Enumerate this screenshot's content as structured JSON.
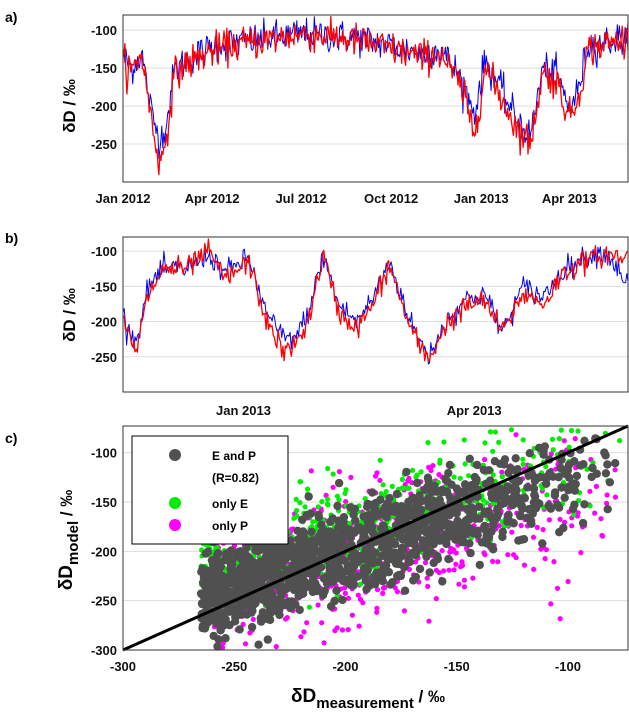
{
  "chart_data": [
    {
      "panel": "a)",
      "type": "line",
      "ylabel": "δD / ‰",
      "ylim": [
        -300,
        -80
      ],
      "yticks": [
        -100,
        -150,
        -200,
        -250
      ],
      "xlim": [
        "2012-01-01",
        "2013-05-31"
      ],
      "xticks": [
        {
          "date": "2012-01-01",
          "label": "Jan 2012"
        },
        {
          "date": "2012-04-01",
          "label": "Apr 2012"
        },
        {
          "date": "2012-07-01",
          "label": "Jul 2012"
        },
        {
          "date": "2012-10-01",
          "label": "Oct 2012"
        },
        {
          "date": "2013-01-01",
          "label": "Jan 2013"
        },
        {
          "date": "2013-04-01",
          "label": "Apr 2013"
        }
      ],
      "grid": "horizontal",
      "series": [
        {
          "color": "#0000ee",
          "points": [
            [
              "2012-01-01",
              -135
            ],
            [
              "2012-01-10",
              -150
            ],
            [
              "2012-01-20",
              -130
            ],
            [
              "2012-01-31",
              -215
            ],
            [
              "2012-02-08",
              -245
            ],
            [
              "2012-02-15",
              -220
            ],
            [
              "2012-02-22",
              -155
            ],
            [
              "2012-03-05",
              -140
            ],
            [
              "2012-03-20",
              -130
            ],
            [
              "2012-04-05",
              -120
            ],
            [
              "2012-05-01",
              -115
            ],
            [
              "2012-06-01",
              -110
            ],
            [
              "2012-07-01",
              -105
            ],
            [
              "2012-08-01",
              -108
            ],
            [
              "2012-09-01",
              -112
            ],
            [
              "2012-10-01",
              -120
            ],
            [
              "2012-11-01",
              -130
            ],
            [
              "2012-11-20",
              -125
            ],
            [
              "2012-12-10",
              -160
            ],
            [
              "2012-12-25",
              -210
            ],
            [
              "2013-01-05",
              -140
            ],
            [
              "2013-01-20",
              -175
            ],
            [
              "2013-02-05",
              -215
            ],
            [
              "2013-02-20",
              -240
            ],
            [
              "2013-03-05",
              -150
            ],
            [
              "2013-03-20",
              -160
            ],
            [
              "2013-04-01",
              -205
            ],
            [
              "2013-04-10",
              -180
            ],
            [
              "2013-04-20",
              -120
            ],
            [
              "2013-05-10",
              -115
            ],
            [
              "2013-05-31",
              -108
            ]
          ]
        },
        {
          "color": "#ff0000",
          "points": [
            [
              "2012-01-01",
              -140
            ],
            [
              "2012-01-10",
              -155
            ],
            [
              "2012-01-20",
              -130
            ],
            [
              "2012-01-31",
              -225
            ],
            [
              "2012-02-08",
              -280
            ],
            [
              "2012-02-15",
              -235
            ],
            [
              "2012-02-22",
              -160
            ],
            [
              "2012-03-05",
              -145
            ],
            [
              "2012-03-20",
              -135
            ],
            [
              "2012-04-05",
              -125
            ],
            [
              "2012-05-01",
              -118
            ],
            [
              "2012-06-01",
              -112
            ],
            [
              "2012-07-01",
              -105
            ],
            [
              "2012-08-01",
              -108
            ],
            [
              "2012-09-01",
              -115
            ],
            [
              "2012-10-01",
              -125
            ],
            [
              "2012-11-01",
              -135
            ],
            [
              "2012-11-20",
              -130
            ],
            [
              "2012-12-10",
              -170
            ],
            [
              "2012-12-25",
              -235
            ],
            [
              "2013-01-05",
              -150
            ],
            [
              "2013-01-20",
              -185
            ],
            [
              "2013-02-05",
              -225
            ],
            [
              "2013-02-20",
              -250
            ],
            [
              "2013-03-05",
              -155
            ],
            [
              "2013-03-20",
              -170
            ],
            [
              "2013-04-01",
              -215
            ],
            [
              "2013-04-10",
              -190
            ],
            [
              "2013-04-20",
              -125
            ],
            [
              "2013-05-10",
              -118
            ],
            [
              "2013-05-31",
              -110
            ]
          ]
        }
      ]
    },
    {
      "panel": "b)",
      "type": "line",
      "ylabel": "δD / ‰",
      "ylim": [
        -300,
        -80
      ],
      "yticks": [
        -100,
        -150,
        -200,
        -250
      ],
      "xlim": [
        "2012-11-15",
        "2013-05-31"
      ],
      "xticks": [
        {
          "date": "2013-01-01",
          "label": "Jan 2013"
        },
        {
          "date": "2013-04-01",
          "label": "Apr 2013"
        }
      ],
      "grid": "horizontal",
      "series": [
        {
          "color": "#0000ee",
          "points": [
            [
              "2012-11-15",
              -190
            ],
            [
              "2012-11-20",
              -230
            ],
            [
              "2012-11-25",
              -150
            ],
            [
              "2012-12-01",
              -125
            ],
            [
              "2012-12-10",
              -125
            ],
            [
              "2012-12-18",
              -105
            ],
            [
              "2012-12-25",
              -130
            ],
            [
              "2013-01-03",
              -110
            ],
            [
              "2013-01-10",
              -190
            ],
            [
              "2013-01-17",
              -225
            ],
            [
              "2013-01-22",
              -220
            ],
            [
              "2013-01-27",
              -180
            ],
            [
              "2013-02-01",
              -105
            ],
            [
              "2013-02-07",
              -175
            ],
            [
              "2013-02-14",
              -200
            ],
            [
              "2013-02-20",
              -170
            ],
            [
              "2013-02-27",
              -115
            ],
            [
              "2013-03-07",
              -200
            ],
            [
              "2013-03-14",
              -250
            ],
            [
              "2013-03-21",
              -200
            ],
            [
              "2013-03-28",
              -170
            ],
            [
              "2013-04-05",
              -160
            ],
            [
              "2013-04-12",
              -215
            ],
            [
              "2013-04-20",
              -150
            ],
            [
              "2013-04-28",
              -165
            ],
            [
              "2013-05-06",
              -125
            ],
            [
              "2013-05-14",
              -110
            ],
            [
              "2013-05-22",
              -100
            ],
            [
              "2013-05-31",
              -145
            ]
          ]
        },
        {
          "color": "#ff0000",
          "points": [
            [
              "2012-11-15",
              -200
            ],
            [
              "2012-11-20",
              -245
            ],
            [
              "2012-11-25",
              -160
            ],
            [
              "2012-12-01",
              -125
            ],
            [
              "2012-12-10",
              -125
            ],
            [
              "2012-12-18",
              -100
            ],
            [
              "2012-12-25",
              -140
            ],
            [
              "2013-01-03",
              -115
            ],
            [
              "2013-01-10",
              -200
            ],
            [
              "2013-01-17",
              -245
            ],
            [
              "2013-01-22",
              -230
            ],
            [
              "2013-01-27",
              -190
            ],
            [
              "2013-02-01",
              -105
            ],
            [
              "2013-02-07",
              -185
            ],
            [
              "2013-02-14",
              -210
            ],
            [
              "2013-02-20",
              -180
            ],
            [
              "2013-02-27",
              -120
            ],
            [
              "2013-03-07",
              -210
            ],
            [
              "2013-03-14",
              -255
            ],
            [
              "2013-03-21",
              -205
            ],
            [
              "2013-03-28",
              -180
            ],
            [
              "2013-04-05",
              -170
            ],
            [
              "2013-04-12",
              -215
            ],
            [
              "2013-04-20",
              -160
            ],
            [
              "2013-04-28",
              -175
            ],
            [
              "2013-05-06",
              -130
            ],
            [
              "2013-05-14",
              -115
            ],
            [
              "2013-05-22",
              -105
            ],
            [
              "2013-05-31",
              -110
            ]
          ]
        }
      ]
    },
    {
      "panel": "c)",
      "type": "scatter",
      "xlabel_main": "δD",
      "xlabel_sub": "measurement",
      "xlabel_unit": " / ‰",
      "ylabel_main": "δD",
      "ylabel_sub": "model",
      "ylabel_unit": " / ‰",
      "xlim": [
        -300,
        -73
      ],
      "ylim": [
        -300,
        -73
      ],
      "xticks": [
        -300,
        -250,
        -200,
        -150,
        -100
      ],
      "yticks": [
        -300,
        -250,
        -200,
        -150,
        -100
      ],
      "grid": "horizontal",
      "legend_position": "top-left",
      "reference_line": "1:1",
      "legend": [
        {
          "label": "E and P",
          "color": "#505050"
        },
        {
          "label": "(R=0.82)",
          "color": null
        },
        {
          "label": "only E",
          "color": "#00ee00"
        },
        {
          "label": "only P",
          "color": "#ff00ff"
        }
      ],
      "series": [
        {
          "name": "only P",
          "color": "#ff00ff",
          "x_range": [
            -260,
            -75
          ],
          "mean_slope": 0.55,
          "mean_intercept": -95,
          "spread": 35
        },
        {
          "name": "only E",
          "color": "#00ee00",
          "x_range": [
            -265,
            -75
          ],
          "mean_slope": 0.6,
          "mean_intercept": -60,
          "spread": 25
        },
        {
          "name": "E and P",
          "color": "#505050",
          "x_range": [
            -265,
            -78
          ],
          "mean_slope": 0.72,
          "mean_intercept": -55,
          "spread": 22
        }
      ]
    }
  ]
}
